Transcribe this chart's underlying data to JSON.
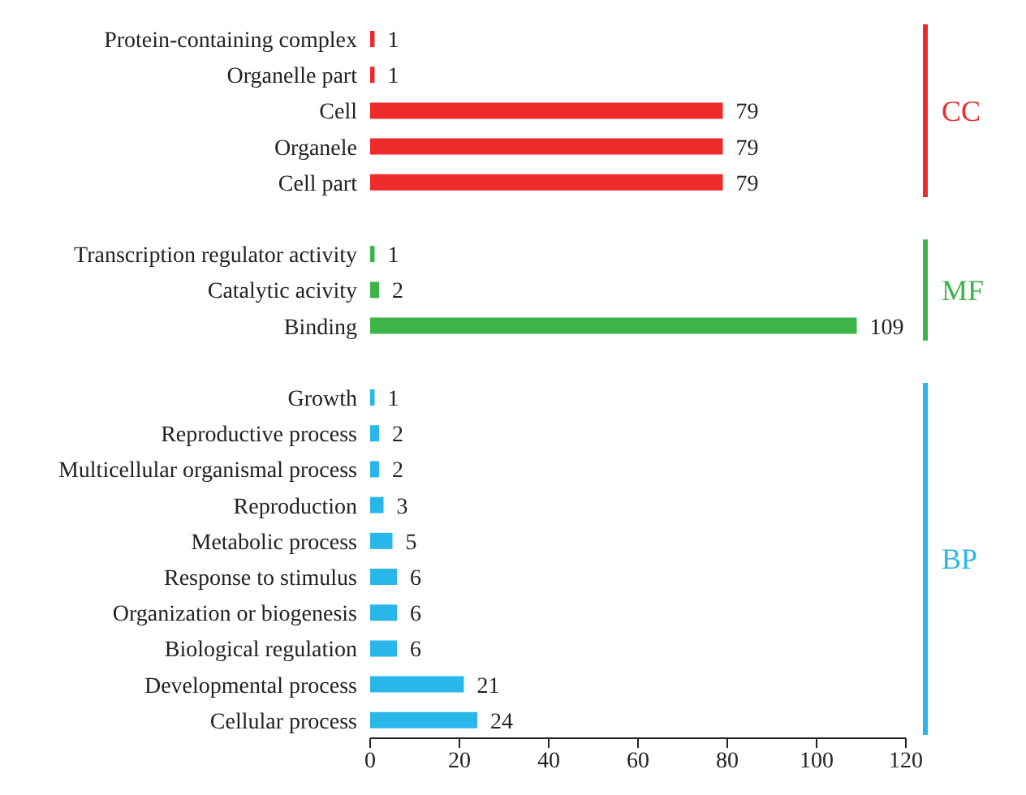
{
  "chart_data": {
    "type": "bar",
    "orientation": "horizontal",
    "categories": [
      "Protein-containing complex",
      "Organelle part",
      "Cell",
      "Organele",
      "Cell part",
      null,
      "Transcription regulator activity",
      "Catalytic acivity",
      "Binding",
      null,
      "Growth",
      "Reproductive process",
      "Multicellular organismal process",
      "Reproduction",
      "Metabolic process",
      "Response to stimulus",
      "Organization or biogenesis",
      "Biological regulation",
      "Developmental process",
      "Cellular process"
    ],
    "series": [
      {
        "name": "CC",
        "color": "#ee2a2a",
        "values": [
          1,
          1,
          79,
          79,
          79,
          null,
          null,
          null,
          null,
          null,
          null,
          null,
          null,
          null,
          null,
          null,
          null,
          null,
          null,
          null
        ]
      },
      {
        "name": "MF",
        "color": "#3cb44a",
        "values": [
          null,
          null,
          null,
          null,
          null,
          null,
          1,
          2,
          109,
          null,
          null,
          null,
          null,
          null,
          null,
          null,
          null,
          null,
          null,
          null
        ]
      },
      {
        "name": "BP",
        "color": "#29b6e8",
        "values": [
          null,
          null,
          null,
          null,
          null,
          null,
          null,
          null,
          null,
          null,
          1,
          2,
          2,
          3,
          5,
          6,
          6,
          6,
          21,
          24
        ]
      }
    ],
    "xlim": [
      0,
      120
    ],
    "xticks": [
      0,
      20,
      40,
      60,
      80,
      100,
      120
    ],
    "data_labels": true,
    "grid": false
  }
}
